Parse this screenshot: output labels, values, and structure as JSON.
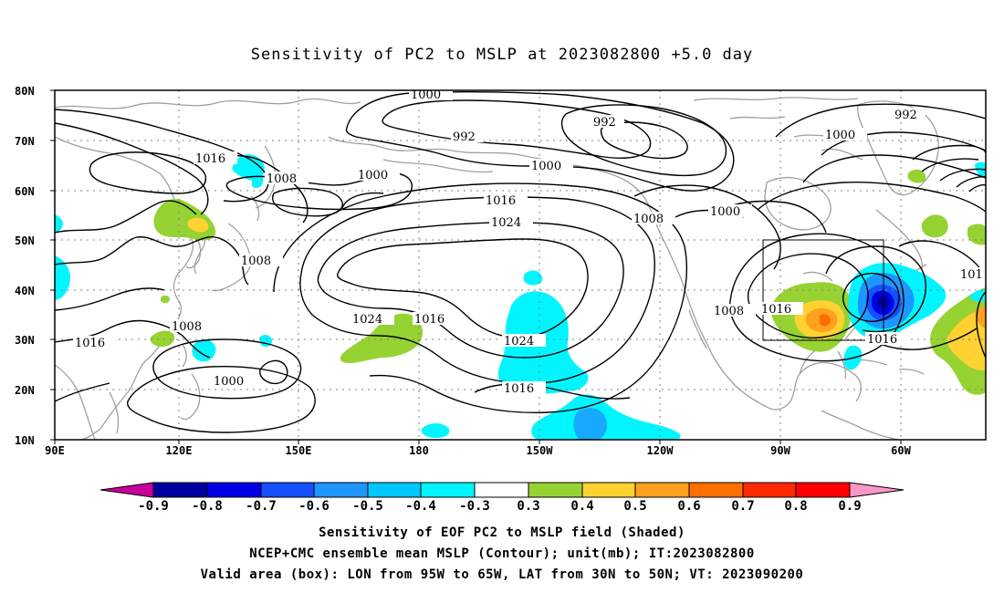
{
  "title": "Sensitivity of PC2 to MSLP at 2023082800 +5.0 day",
  "lat_labels": [
    "80N",
    "70N",
    "60N",
    "50N",
    "40N",
    "30N",
    "20N",
    "10N"
  ],
  "lon_labels": [
    "90E",
    "120E",
    "150E",
    "180",
    "150W",
    "120W",
    "90W",
    "60W"
  ],
  "contour_labels": [
    {
      "id": "c1",
      "text": "1000"
    },
    {
      "id": "c2",
      "text": "992"
    },
    {
      "id": "c3",
      "text": "992"
    },
    {
      "id": "c4",
      "text": "1000"
    },
    {
      "id": "c5",
      "text": "992"
    },
    {
      "id": "c6",
      "text": "1000"
    },
    {
      "id": "c7",
      "text": "1016"
    },
    {
      "id": "c8",
      "text": "1008"
    },
    {
      "id": "c9",
      "text": "1000"
    },
    {
      "id": "c10",
      "text": "1016"
    },
    {
      "id": "c11",
      "text": "1024"
    },
    {
      "id": "c12",
      "text": "1008"
    },
    {
      "id": "c13",
      "text": "1000"
    },
    {
      "id": "c14",
      "text": "1008"
    },
    {
      "id": "c15",
      "text": "1024"
    },
    {
      "id": "c16",
      "text": "1016"
    },
    {
      "id": "c17",
      "text": "1024"
    },
    {
      "id": "c18",
      "text": "1016"
    },
    {
      "id": "c19",
      "text": "1008"
    },
    {
      "id": "c20",
      "text": "1016"
    },
    {
      "id": "c21",
      "text": "1016"
    },
    {
      "id": "c22",
      "text": "1008"
    },
    {
      "id": "c23",
      "text": "1016"
    },
    {
      "id": "c24",
      "text": "1000"
    },
    {
      "id": "c25",
      "text": "101"
    }
  ],
  "colorbar": {
    "ticks": [
      "-0.9",
      "-0.8",
      "-0.7",
      "-0.6",
      "-0.5",
      "-0.4",
      "-0.3",
      "0.3",
      "0.4",
      "0.5",
      "0.6",
      "0.7",
      "0.8",
      "0.9"
    ],
    "colors": {
      "lt_m09": "#c8009c",
      "m09_m08": "#0000a0",
      "m08_m07": "#0000e6",
      "m07_m06": "#1450ff",
      "m06_m05": "#1e96ff",
      "m05_m04": "#00c8ff",
      "m04_m03": "#00f5ff",
      "m03_03": "#ffffff",
      "p03_04": "#96d232",
      "p04_05": "#ffd232",
      "p05_06": "#ffa01e",
      "p06_07": "#ff6e00",
      "p07_08": "#ff2800",
      "p08_09": "#ff0000",
      "gt_09": "#ff96c8"
    }
  },
  "box": {
    "lon_west": "95W",
    "lon_east": "65W",
    "lat_south": "30N",
    "lat_north": "50N"
  },
  "caption_lines": [
    "Sensitivity of EOF PC2 to MSLP field (Shaded)",
    "NCEP+CMC ensemble mean MSLP (Contour); unit(mb); IT:2023082800",
    "Valid area (box): LON from 95W to 65W, LAT from 30N to 50N; VT: 2023090200"
  ]
}
